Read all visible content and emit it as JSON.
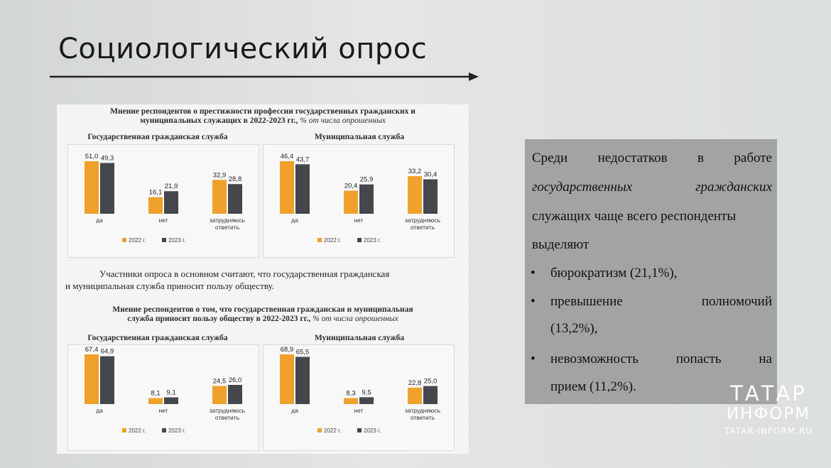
{
  "slide": {
    "title": "Социологический опрос"
  },
  "top_heading": {
    "line1": "Мнение респондентов о престижности профессии государственных гражданских и",
    "line2": "муниципальных служащих в 2022-2023 гг.,",
    "note": "% от числа опрошенных"
  },
  "paragraph": {
    "line1": "Участники опроса в основном считают, что государственная гражданская",
    "line2": "и муниципальная служба приносит пользу обществу."
  },
  "bottom_heading": {
    "line1": "Мнение респондентов о том, что государственная гражданская и муниципальная",
    "line2": "служба приносит пользу обществу в 2022-2023 гг.,",
    "note": "% от числа опрошенных"
  },
  "colors": {
    "y2022": "#f0a12b",
    "y2023": "#46474d"
  },
  "chart_data": [
    {
      "type": "bar",
      "title": "Государственная гражданская служба",
      "categories": [
        "да",
        "нет",
        "затрудняюсь ответить"
      ],
      "series": [
        {
          "name": "2022 г.",
          "values": [
            51.0,
            16.1,
            32.9
          ]
        },
        {
          "name": "2023 г.",
          "values": [
            49.3,
            21.9,
            28.8
          ]
        }
      ],
      "value_labels": [
        [
          "51,0",
          "16,1",
          "32,9"
        ],
        [
          "49,3",
          "21,9",
          "28,8"
        ]
      ],
      "ylim": [
        0,
        51.0
      ],
      "legend": "bottom"
    },
    {
      "type": "bar",
      "title": "Муниципальная служба",
      "categories": [
        "да",
        "нет",
        "затрудняюсь ответить"
      ],
      "series": [
        {
          "name": "2022 г.",
          "values": [
            46.4,
            20.4,
            33.2
          ]
        },
        {
          "name": "2023 г.",
          "values": [
            43.7,
            25.9,
            30.4
          ]
        }
      ],
      "value_labels": [
        [
          "46,4",
          "20,4",
          "33,2"
        ],
        [
          "43,7",
          "25,9",
          "30,4"
        ]
      ],
      "ylim": [
        0,
        46.4
      ],
      "legend": "bottom"
    },
    {
      "type": "bar",
      "title": "Государственная гражданская служба",
      "categories": [
        "да",
        "нет",
        "затрудняюсь ответить"
      ],
      "series": [
        {
          "name": "2022 г.",
          "values": [
            67.4,
            8.1,
            24.5
          ]
        },
        {
          "name": "2023 г.",
          "values": [
            64.9,
            9.1,
            26.0
          ]
        }
      ],
      "value_labels": [
        [
          "67,4",
          "8,1",
          "24,5"
        ],
        [
          "64,9",
          "9,1",
          "26,0"
        ]
      ],
      "ylim": [
        0,
        67.4
      ],
      "legend": "bottom"
    },
    {
      "type": "bar",
      "title": "Муниципальная служба",
      "categories": [
        "да",
        "нет",
        "затрудняюсь ответить"
      ],
      "series": [
        {
          "name": "2022 г.",
          "values": [
            68.9,
            8.3,
            22.8
          ]
        },
        {
          "name": "2023 г.",
          "values": [
            65.5,
            9.5,
            25.0
          ]
        }
      ],
      "value_labels": [
        [
          "68,9",
          "8,3",
          "22,8"
        ],
        [
          "65,5",
          "9,5",
          "25,0"
        ]
      ],
      "ylim": [
        0,
        68.9
      ],
      "legend": "bottom"
    }
  ],
  "textbox": {
    "intro_words": [
      "Среди",
      "недостатков",
      "в",
      "работе"
    ],
    "italic_words": [
      "государственных",
      "гражданских"
    ],
    "line3": "служащих чаще всего респонденты",
    "line4": "выделяют",
    "bullets": [
      {
        "text": "бюрократизм (21,1%),"
      },
      {
        "words": [
          "превышение",
          "полномочий"
        ],
        "cont": "(13,2%),"
      },
      {
        "words": [
          "невозможность",
          "попасть",
          "на"
        ],
        "cont": "прием (11,2%)."
      }
    ],
    "bullet_symbol": "•"
  },
  "logo": {
    "line1": "ТАТАР",
    "line2": "ИНФОРМ",
    "line3": "TATAR-INFORM.RU"
  }
}
